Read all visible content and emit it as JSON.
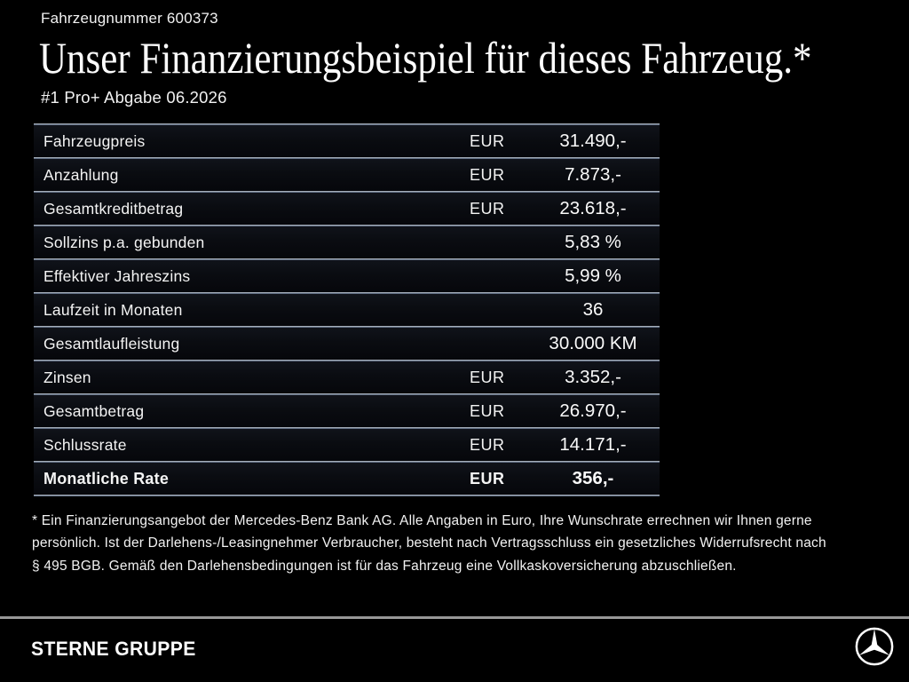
{
  "header": {
    "vehicle_number": "Fahrzeugnummer 600373",
    "title": "Unser Finanzierungsbeispiel für dieses Fahrzeug.*",
    "subtitle": "#1 Pro+ Abgabe 06.2026"
  },
  "table": {
    "rows": [
      {
        "label": "Fahrzeugpreis",
        "currency": "EUR",
        "value": "31.490,-",
        "bold": false
      },
      {
        "label": "Anzahlung",
        "currency": "EUR",
        "value": "7.873,-",
        "bold": false
      },
      {
        "label": "Gesamtkreditbetrag",
        "currency": "EUR",
        "value": "23.618,-",
        "bold": false
      },
      {
        "label": "Sollzins p.a. gebunden",
        "currency": "",
        "value": "5,83 %",
        "bold": false
      },
      {
        "label": "Effektiver Jahreszins",
        "currency": "",
        "value": "5,99 %",
        "bold": false
      },
      {
        "label": "Laufzeit in Monaten",
        "currency": "",
        "value": "36",
        "bold": false
      },
      {
        "label": "Gesamtlaufleistung",
        "currency": "",
        "value": "30.000 KM",
        "bold": false
      },
      {
        "label": "Zinsen",
        "currency": "EUR",
        "value": "3.352,-",
        "bold": false
      },
      {
        "label": "Gesamtbetrag",
        "currency": "EUR",
        "value": "26.970,-",
        "bold": false
      },
      {
        "label": "Schlussrate",
        "currency": "EUR",
        "value": "14.171,-",
        "bold": false
      },
      {
        "label": "Monatliche Rate",
        "currency": "EUR",
        "value": "356,-",
        "bold": true
      }
    ]
  },
  "disclaimer": {
    "lines": [
      "* Ein Finanzierungsangebot der Mercedes-Benz Bank AG. Alle Angaben in Euro, Ihre Wunschrate errechnen wir Ihnen gerne",
      "persönlich. Ist der Darlehens-/Leasingnehmer Verbraucher, besteht nach Vertragsschluss ein gesetzliches Widerrufsrecht nach",
      "§ 495 BGB. Gemäß den Darlehensbedingungen ist für das Fahrzeug eine Vollkaskoversicherung abzuschließen."
    ]
  },
  "footer": {
    "brand": "STERNE GRUPPE",
    "logo": "mercedes-star-icon"
  },
  "colors": {
    "background": "#000000",
    "text": "#f5f5f5",
    "separator_light": "#c6ccd2",
    "separator_blue": "#3e4e68",
    "footer_line": "#979797"
  }
}
